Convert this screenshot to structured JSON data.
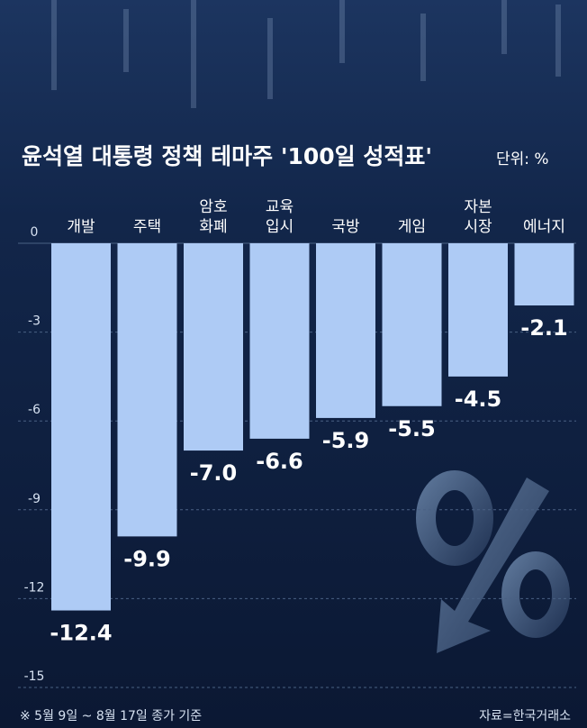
{
  "chart_data": {
    "type": "bar",
    "title": "윤석열 대통령 정책 테마주 '100일 성적표'",
    "unit": "단위: %",
    "categories": [
      [
        "개발"
      ],
      [
        "주택"
      ],
      [
        "암호",
        "화폐"
      ],
      [
        "교육",
        "입시"
      ],
      [
        "국방"
      ],
      [
        "게임"
      ],
      [
        "자본",
        "시장"
      ],
      [
        "에너지"
      ]
    ],
    "values": [
      -12.4,
      -9.9,
      -7.0,
      -6.6,
      -5.9,
      -5.5,
      -4.5,
      -2.1
    ],
    "value_labels": [
      "-12.4",
      "-9.9",
      "-7.0",
      "-6.6",
      "-5.9",
      "-5.5",
      "-4.5",
      "-2.1"
    ],
    "color": "#aecbf5",
    "ylim": [
      -15,
      0
    ],
    "yticks": [
      0,
      -3,
      -6,
      -9,
      -12,
      -15
    ],
    "grid": true,
    "note": "※ 5월 9일 ~ 8월 17일 종가 기준",
    "source": "자료=한국거래소"
  }
}
